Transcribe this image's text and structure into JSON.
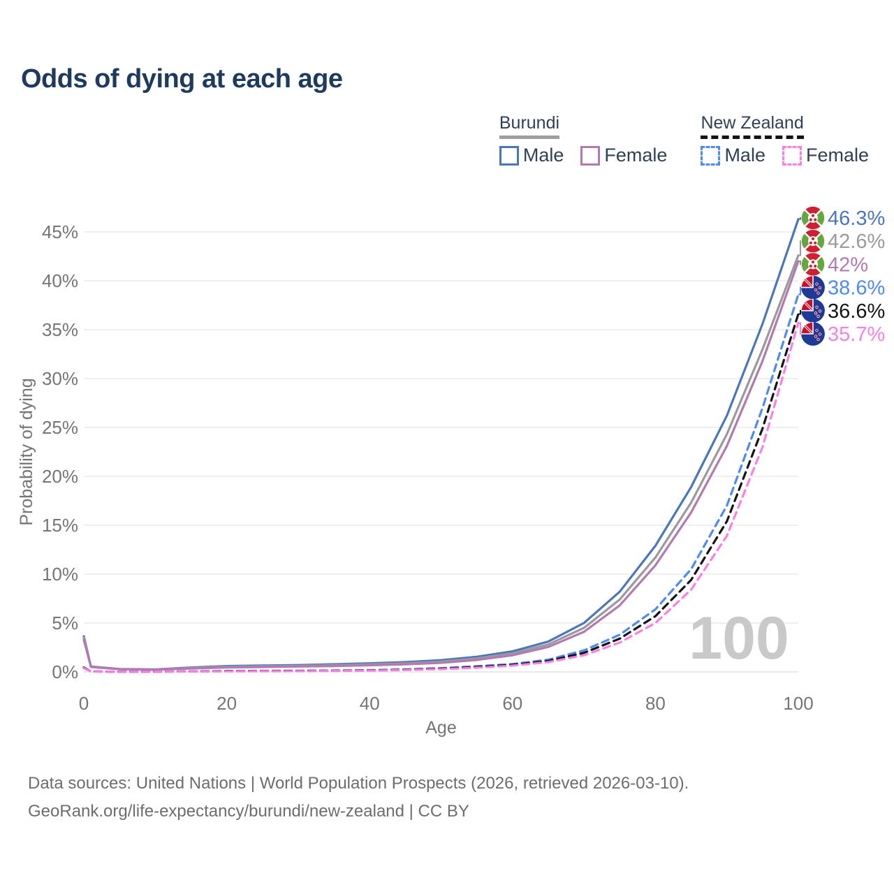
{
  "title": "Odds of dying at each age",
  "watermark_age": "100",
  "legend": {
    "groups": [
      {
        "name": "Burundi",
        "line_style": "solid",
        "underline_color": "#9e9e9e",
        "items": [
          {
            "label": "Male",
            "color": "#4a76bc"
          },
          {
            "label": "Female",
            "color": "#b279b2"
          }
        ]
      },
      {
        "name": "New Zealand",
        "line_style": "dashed",
        "underline_color": "#141414",
        "items": [
          {
            "label": "Male",
            "color": "#4d8af5"
          },
          {
            "label": "Female",
            "color": "#fb7fe3"
          }
        ]
      }
    ]
  },
  "footer": {
    "line1": "Data sources: United Nations | World Population Prospects (2026, retrieved 2026-03-10).",
    "line2": "GeoRank.org/life-expectancy/burundi/new-zealand | CC BY"
  },
  "chart_data": {
    "type": "line",
    "title": "Odds of dying at each age",
    "xlabel": "Age",
    "ylabel": "Probability of dying",
    "x_ticks": [
      0,
      20,
      40,
      60,
      80,
      100
    ],
    "y_ticks_pct": [
      0,
      5,
      10,
      15,
      20,
      25,
      30,
      35,
      40,
      45
    ],
    "xlim": [
      0,
      100
    ],
    "ylim_pct": [
      0,
      47
    ],
    "grid": "horizontal",
    "legend_position": "top-right",
    "ages": [
      0,
      1,
      5,
      10,
      15,
      20,
      25,
      30,
      35,
      40,
      45,
      50,
      55,
      60,
      65,
      70,
      75,
      80,
      85,
      90,
      95,
      100
    ],
    "series": [
      {
        "name": "Burundi Male",
        "country": "Burundi",
        "sex": "Male",
        "color": "#4a76bc",
        "dash": false,
        "flag": "burundi",
        "end_label": "46.3%",
        "end_value_pct": 46.3,
        "values_pct": [
          3.65,
          0.55,
          0.3,
          0.25,
          0.45,
          0.6,
          0.65,
          0.7,
          0.78,
          0.88,
          1.0,
          1.2,
          1.55,
          2.1,
          3.1,
          5.0,
          8.2,
          12.9,
          18.9,
          26.2,
          35.6,
          46.3
        ]
      },
      {
        "name": "Burundi Both sexes",
        "country": "Burundi",
        "sex": "Both sexes",
        "color": "#9a9a9a",
        "dash": false,
        "flag": "burundi",
        "end_label": "42.6%",
        "end_value_pct": 42.6,
        "values_pct": [
          3.5,
          0.52,
          0.28,
          0.23,
          0.4,
          0.52,
          0.57,
          0.62,
          0.68,
          0.77,
          0.88,
          1.05,
          1.38,
          1.9,
          2.8,
          4.5,
          7.4,
          11.7,
          17.3,
          24.3,
          33.0,
          42.6
        ]
      },
      {
        "name": "Burundi Female",
        "country": "Burundi",
        "sex": "Female",
        "color": "#b279b2",
        "dash": false,
        "flag": "burundi",
        "end_label": "42%",
        "end_value_pct": 42.0,
        "values_pct": [
          3.3,
          0.5,
          0.27,
          0.22,
          0.35,
          0.45,
          0.5,
          0.55,
          0.6,
          0.68,
          0.78,
          0.93,
          1.22,
          1.7,
          2.55,
          4.1,
          6.8,
          10.9,
          16.3,
          23.1,
          31.8,
          42.0
        ]
      },
      {
        "name": "New Zealand Male",
        "country": "New Zealand",
        "sex": "Male",
        "color": "#4d8af5",
        "dash": true,
        "flag": "nz",
        "end_label": "38.6%",
        "end_value_pct": 38.6,
        "values_pct": [
          0.45,
          0.05,
          0.02,
          0.02,
          0.06,
          0.1,
          0.11,
          0.12,
          0.14,
          0.18,
          0.26,
          0.38,
          0.58,
          0.8,
          1.25,
          2.2,
          3.8,
          6.4,
          10.5,
          17.0,
          27.0,
          38.6
        ]
      },
      {
        "name": "New Zealand Both sexes",
        "country": "New Zealand",
        "sex": "Both sexes",
        "color": "#141414",
        "dash": true,
        "flag": "nz",
        "end_label": "36.6%",
        "end_value_pct": 36.6,
        "values_pct": [
          0.42,
          0.04,
          0.02,
          0.02,
          0.05,
          0.08,
          0.09,
          0.1,
          0.12,
          0.16,
          0.22,
          0.33,
          0.5,
          0.72,
          1.12,
          1.95,
          3.4,
          5.7,
          9.4,
          15.4,
          24.9,
          36.6
        ]
      },
      {
        "name": "New Zealand Female",
        "country": "New Zealand",
        "sex": "Female",
        "color": "#fb7fe3",
        "dash": true,
        "flag": "nz",
        "end_label": "35.7%",
        "end_value_pct": 35.7,
        "values_pct": [
          0.38,
          0.04,
          0.02,
          0.02,
          0.04,
          0.06,
          0.07,
          0.08,
          0.1,
          0.13,
          0.19,
          0.28,
          0.43,
          0.64,
          1.0,
          1.7,
          3.0,
          5.0,
          8.4,
          13.9,
          23.0,
          35.7
        ]
      }
    ]
  }
}
